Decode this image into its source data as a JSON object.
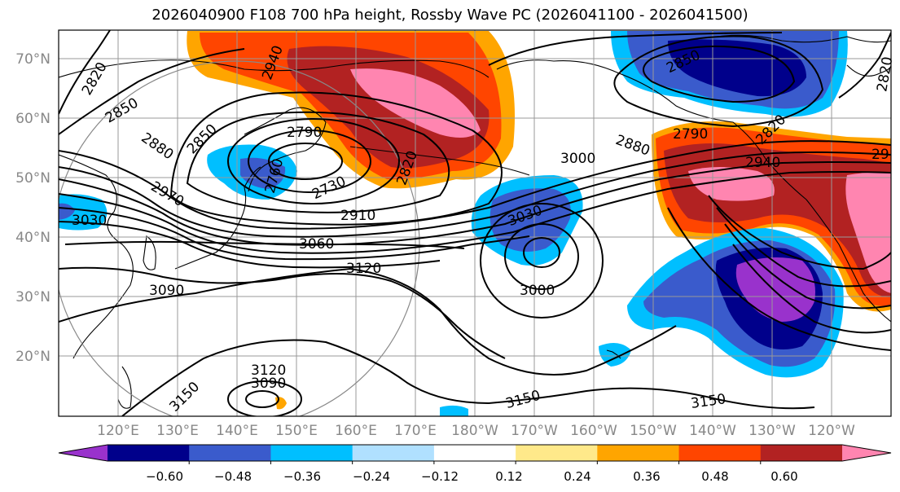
{
  "title": "2026040900 F108 700 hPa height, Rossby Wave PC (2026041100 - 2026041500)",
  "lat_labels": [
    "70°N",
    "60°N",
    "50°N",
    "40°N",
    "30°N",
    "20°N"
  ],
  "lon_labels": [
    "120°E",
    "130°E",
    "140°E",
    "150°E",
    "160°E",
    "170°E",
    "180°W",
    "170°W",
    "160°W",
    "150°W",
    "140°W",
    "130°W",
    "120°W"
  ],
  "colorbar": {
    "ticks": [
      "−0.60",
      "−0.48",
      "−0.36",
      "−0.24",
      "−0.12",
      "0.12",
      "0.24",
      "0.36",
      "0.48",
      "0.60"
    ],
    "colors": [
      "#9932cc",
      "#00008b",
      "#3a5bcc",
      "#00bfff",
      "#b0e0ff",
      "#ffffff",
      "#ffe98a",
      "#ffa500",
      "#ff4500",
      "#b22222",
      "#ff85b0"
    ]
  },
  "contour_labels": {
    "c2820_nw": "2820",
    "c2850_nw": "2850",
    "c2880_w": "2880",
    "c2850_w": "2850",
    "c2940_n": "2940",
    "c2790_w": "2790",
    "c2760": "2760",
    "c2730": "2730",
    "c2820_c": "2820",
    "c2970_w": "2970",
    "c3030_w": "3030",
    "c2910": "2910",
    "c3060": "3060",
    "c3120_c": "3120",
    "c3090_w": "3090",
    "c3030_c": "3030",
    "c3000_c": "3000",
    "c3000_n": "3000",
    "c2880_e": "2880",
    "c2790_e": "2790",
    "c2850_ne": "2850",
    "c2820_ne": "2820",
    "c2940_e": "2940",
    "c29_e": "29",
    "c2820_fe": "2820",
    "c3150_sw": "3150",
    "c3120_s": "3120",
    "c3090_s": "3090",
    "c3150_s": "3150",
    "c3150_se": "3150"
  }
}
